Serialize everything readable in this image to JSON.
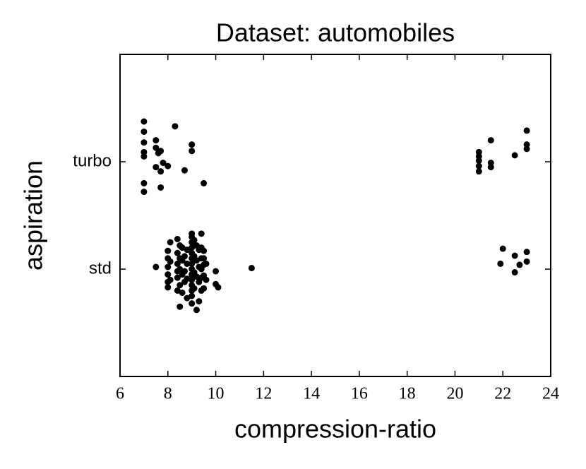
{
  "chart_data": {
    "type": "scatter",
    "title": "Dataset: automobiles",
    "x_label": "compression-ratio",
    "y_label": "aspiration",
    "color": "#000000",
    "x": [
      7,
      7,
      7,
      7,
      7,
      7,
      7,
      7.5,
      7.5,
      7.7,
      7.6,
      7.8,
      7.5,
      7.7,
      8,
      7.7,
      8.3,
      9,
      9,
      8.7,
      9.5,
      21,
      21,
      21,
      21,
      21,
      21.5,
      21.5,
      21.5,
      22.5,
      23,
      23,
      23,
      22,
      21.9,
      22.5,
      22.5,
      22.7,
      23,
      23,
      7.5,
      11.5,
      10,
      10,
      10.1,
      8,
      8,
      8,
      8,
      8,
      8,
      8.1,
      8.1,
      8.1,
      8.4,
      8.4,
      8.4,
      8.4,
      8.4,
      8.4,
      8.5,
      8.5,
      8.5,
      8.5,
      8.5,
      8.6,
      8.6,
      8.6,
      8.6,
      8.7,
      8.7,
      8.7,
      8.8,
      8.8,
      8.8,
      8.8,
      9,
      9,
      9,
      9,
      9,
      9,
      9,
      9,
      9,
      9,
      9,
      9,
      9,
      9,
      9.1,
      9.1,
      9.1,
      9.1,
      9.2,
      9.2,
      9.2,
      9.2,
      9.3,
      9.3,
      9.3,
      9.3,
      9.4,
      9.4,
      9.4,
      9.4,
      9.4,
      9.4,
      9.5,
      9.5,
      9.5,
      9.5,
      9.5,
      9.6,
      9.6
    ],
    "values": [
      1.375,
      1.28,
      1.18,
      1.09,
      1.05,
      0.8,
      0.72,
      1.2,
      1.13,
      1.1,
      1.08,
      0.99,
      0.95,
      0.91,
      0.96,
      0.76,
      1.33,
      1.16,
      1.1,
      0.92,
      0.8,
      1.09,
      1.05,
      1.01,
      0.96,
      0.91,
      1.2,
      0.99,
      0.95,
      1.06,
      1.29,
      1.16,
      1.12,
      0.19,
      0.05,
      0.125,
      -0.03,
      0.04,
      0.16,
      0.07,
      0.02,
      0.01,
      -0.02,
      -0.14,
      -0.17,
      0.17,
      0.1,
      0.02,
      -0.05,
      -0.12,
      -0.17,
      0.25,
      0.07,
      -0.1,
      0.28,
      0.15,
      0.05,
      -0.02,
      -0.08,
      -0.2,
      0.22,
      0.1,
      0,
      -0.15,
      -0.35,
      0.2,
      0.08,
      -0.05,
      -0.22,
      0.12,
      -0.02,
      -0.12,
      0.18,
      0.05,
      -0.09,
      -0.27,
      0.33,
      0.3,
      0.25,
      0.2,
      0.15,
      0.1,
      0.05,
      0,
      -0.05,
      -0.1,
      -0.15,
      -0.2,
      -0.25,
      -0.32,
      0.27,
      0.12,
      -0.03,
      -0.18,
      0.22,
      0.08,
      -0.07,
      -0.38,
      0.18,
      0.02,
      -0.12,
      -0.3,
      0.33,
      0.2,
      0.1,
      0,
      -0.08,
      -0.2,
      0.17,
      0.1,
      0.04,
      -0.06,
      -0.18,
      0.05,
      -0.1
    ],
    "xlim": [
      6,
      24
    ],
    "xticks": [
      6,
      8,
      10,
      12,
      14,
      16,
      18,
      20,
      22,
      24
    ],
    "ylim": [
      -1,
      2
    ],
    "yticks": [
      {
        "value": 0,
        "label": "std"
      },
      {
        "value": 1,
        "label": "turbo"
      }
    ]
  }
}
